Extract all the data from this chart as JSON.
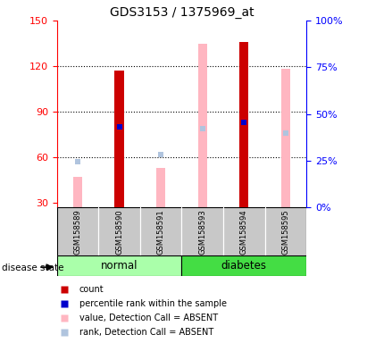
{
  "title": "GDS3153 / 1375969_at",
  "samples": [
    "GSM158589",
    "GSM158590",
    "GSM158591",
    "GSM158593",
    "GSM158594",
    "GSM158595"
  ],
  "yticks_left": [
    30,
    60,
    90,
    120,
    150
  ],
  "yticks_right": [
    0,
    25,
    50,
    75,
    100
  ],
  "count_values": [
    null,
    117,
    null,
    null,
    136,
    null
  ],
  "count_color": "#CC0000",
  "percentile_values": [
    null,
    80,
    null,
    null,
    83,
    null
  ],
  "percentile_color": "#0000CC",
  "absent_value_values": [
    47,
    null,
    53,
    135,
    null,
    118
  ],
  "absent_value_color": "#FFB6C1",
  "absent_rank_values": [
    57,
    null,
    62,
    79,
    null,
    76
  ],
  "absent_rank_color": "#B0C4DE",
  "normal_color": "#AAFFAA",
  "diabetes_color": "#44DD44",
  "sample_bg_color": "#C8C8C8",
  "title_fontsize": 10,
  "tick_fontsize": 8,
  "label_fontsize": 7
}
